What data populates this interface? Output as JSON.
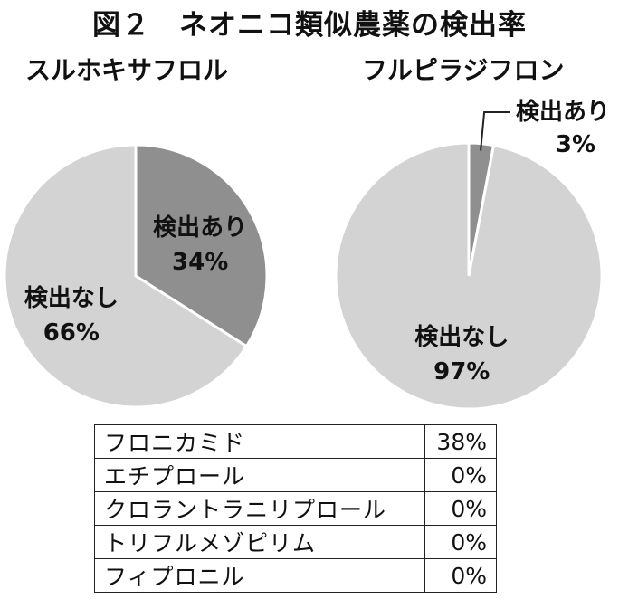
{
  "title": "図２　ネオニコ類似農薬の検出率",
  "chart_data": [
    {
      "type": "pie",
      "title": "スルホキサフロル",
      "slices": [
        {
          "label": "検出あり",
          "value": 34,
          "value_label": "34%",
          "color": "#8f8f8f"
        },
        {
          "label": "検出なし",
          "value": 66,
          "value_label": "66%",
          "color": "#d3d3d3"
        }
      ]
    },
    {
      "type": "pie",
      "title": "フルピラジフロン",
      "slices": [
        {
          "label": "検出あり",
          "value": 3,
          "value_label": "3%",
          "color": "#8f8f8f"
        },
        {
          "label": "検出なし",
          "value": 97,
          "value_label": "97%",
          "color": "#d3d3d3"
        }
      ]
    },
    {
      "type": "table",
      "rows": [
        {
          "name": "フロニカミド",
          "value": "38%"
        },
        {
          "name": "エチプロール",
          "value": "0%"
        },
        {
          "name": "クロラントラニリプロール",
          "value": "0%"
        },
        {
          "name": "トリフルメゾピリム",
          "value": "0%"
        },
        {
          "name": "フィプロニル",
          "value": "0%"
        }
      ]
    }
  ]
}
